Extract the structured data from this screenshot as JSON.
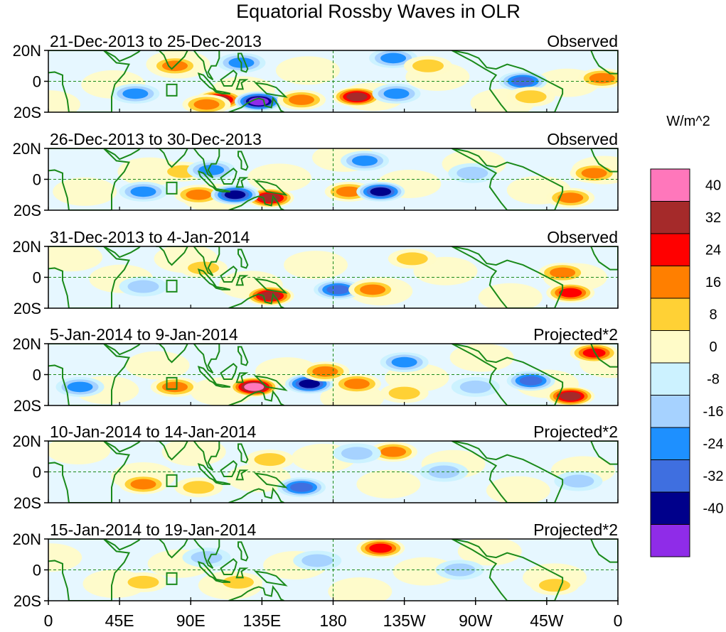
{
  "chart_data": {
    "type": "heatmap",
    "title": "Equatorial Rossby Waves in OLR",
    "units_label": "W/m^2",
    "x_ticks": [
      "0",
      "45E",
      "90E",
      "135E",
      "180",
      "135W",
      "90W",
      "45W",
      "0"
    ],
    "x_tick_values": [
      0,
      45,
      90,
      135,
      180,
      225,
      270,
      315,
      360
    ],
    "y_ticks": [
      "20N",
      "0",
      "20S"
    ],
    "y_tick_values": [
      20,
      0,
      -20
    ],
    "xlim": [
      0,
      360
    ],
    "ylim": [
      -20,
      20
    ],
    "colorbar": {
      "levels": [
        "40",
        "32",
        "24",
        "16",
        "8",
        "0",
        "-8",
        "-16",
        "-24",
        "-32",
        "-40"
      ],
      "colors": [
        "#ff77bb",
        "#a52a2a",
        "#ff0000",
        "#ff7f00",
        "#ffd135",
        "#fffbc8",
        "#ccf2ff",
        "#a6d2ff",
        "#1e90ff",
        "#3f6fe0",
        "#00008b",
        "#8f2ce8"
      ]
    },
    "panels": [
      {
        "date_range": "21-Dec-2013 to 25-Dec-2013",
        "kind": "Observed",
        "anomalies": [
          {
            "lon": 108,
            "lat": -12,
            "value": 32
          },
          {
            "lon": 80,
            "lat": 10,
            "value": 16
          },
          {
            "lon": 122,
            "lat": 12,
            "value": -16
          },
          {
            "lon": 133,
            "lat": -13,
            "value": -40
          },
          {
            "lon": 195,
            "lat": -10,
            "value": 32
          },
          {
            "lon": 220,
            "lat": -8,
            "value": -16
          },
          {
            "lon": 218,
            "lat": 15,
            "value": -16
          },
          {
            "lon": 240,
            "lat": 10,
            "value": 8
          },
          {
            "lon": 300,
            "lat": 0,
            "value": -24
          },
          {
            "lon": 305,
            "lat": -10,
            "value": 8
          },
          {
            "lon": 350,
            "lat": 2,
            "value": 16
          },
          {
            "lon": 55,
            "lat": -8,
            "value": -16
          },
          {
            "lon": 100,
            "lat": -15,
            "value": 16
          },
          {
            "lon": 160,
            "lat": -12,
            "value": 16
          }
        ]
      },
      {
        "date_range": "26-Dec-2013 to 30-Dec-2013",
        "kind": "Observed",
        "anomalies": [
          {
            "lon": 95,
            "lat": -10,
            "value": 16
          },
          {
            "lon": 140,
            "lat": -12,
            "value": 32
          },
          {
            "lon": 118,
            "lat": -10,
            "value": -32
          },
          {
            "lon": 85,
            "lat": 5,
            "value": 8
          },
          {
            "lon": 103,
            "lat": 6,
            "value": -16
          },
          {
            "lon": 60,
            "lat": -8,
            "value": -16
          },
          {
            "lon": 190,
            "lat": -8,
            "value": 16
          },
          {
            "lon": 210,
            "lat": -8,
            "value": -32
          },
          {
            "lon": 200,
            "lat": 12,
            "value": -16
          },
          {
            "lon": 330,
            "lat": -12,
            "value": 16
          },
          {
            "lon": 345,
            "lat": 4,
            "value": 16
          },
          {
            "lon": 268,
            "lat": 4,
            "value": -8
          }
        ]
      },
      {
        "date_range": "31-Dec-2013 to 4-Jan-2014",
        "kind": "Observed",
        "anomalies": [
          {
            "lon": 140,
            "lat": -12,
            "value": 32
          },
          {
            "lon": 183,
            "lat": -8,
            "value": -24
          },
          {
            "lon": 98,
            "lat": 6,
            "value": 8
          },
          {
            "lon": 205,
            "lat": -8,
            "value": 16
          },
          {
            "lon": 330,
            "lat": -10,
            "value": 24
          },
          {
            "lon": 325,
            "lat": 3,
            "value": 16
          },
          {
            "lon": 60,
            "lat": -6,
            "value": -8
          },
          {
            "lon": 230,
            "lat": 12,
            "value": 8
          }
        ]
      },
      {
        "date_range": "5-Jan-2014 to 9-Jan-2014",
        "kind": "Projected*2",
        "anomalies": [
          {
            "lon": 130,
            "lat": -8,
            "value": 40
          },
          {
            "lon": 165,
            "lat": -6,
            "value": -32
          },
          {
            "lon": 20,
            "lat": -8,
            "value": -16
          },
          {
            "lon": 80,
            "lat": -8,
            "value": 16
          },
          {
            "lon": 175,
            "lat": 2,
            "value": 16
          },
          {
            "lon": 195,
            "lat": -6,
            "value": 16
          },
          {
            "lon": 225,
            "lat": 8,
            "value": -16
          },
          {
            "lon": 330,
            "lat": -14,
            "value": 32
          },
          {
            "lon": 345,
            "lat": 14,
            "value": 24
          },
          {
            "lon": 305,
            "lat": -4,
            "value": -24
          },
          {
            "lon": 270,
            "lat": -8,
            "value": -8
          },
          {
            "lon": 225,
            "lat": -12,
            "value": 8
          }
        ]
      },
      {
        "date_range": "10-Jan-2014 to 14-Jan-2014",
        "kind": "Projected*2",
        "anomalies": [
          {
            "lon": 160,
            "lat": -10,
            "value": -24
          },
          {
            "lon": 60,
            "lat": -8,
            "value": 16
          },
          {
            "lon": 95,
            "lat": -10,
            "value": 8
          },
          {
            "lon": 218,
            "lat": 13,
            "value": 16
          },
          {
            "lon": 195,
            "lat": 12,
            "value": -8
          },
          {
            "lon": 140,
            "lat": 8,
            "value": 8
          },
          {
            "lon": 250,
            "lat": 0,
            "value": -8
          },
          {
            "lon": 335,
            "lat": -6,
            "value": -8
          }
        ]
      },
      {
        "date_range": "15-Jan-2014 to 19-Jan-2014",
        "kind": "Projected*2",
        "anomalies": [
          {
            "lon": 210,
            "lat": 14,
            "value": 24
          },
          {
            "lon": 60,
            "lat": -8,
            "value": 8
          },
          {
            "lon": 120,
            "lat": -8,
            "value": 8
          },
          {
            "lon": 170,
            "lat": 6,
            "value": -8
          },
          {
            "lon": 260,
            "lat": 0,
            "value": -8
          },
          {
            "lon": 100,
            "lat": 8,
            "value": -8
          },
          {
            "lon": 320,
            "lat": -10,
            "value": 8
          }
        ]
      }
    ]
  }
}
